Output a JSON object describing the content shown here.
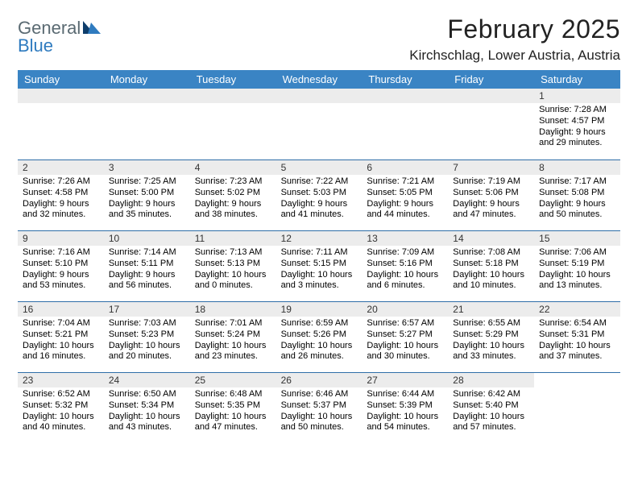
{
  "logo": {
    "word1": "General",
    "word2": "Blue"
  },
  "header": {
    "month_title": "February 2025",
    "location": "Kirchschlag, Lower Austria, Austria"
  },
  "colors": {
    "header_bar": "#3a84c4",
    "daynum_bg": "#ececec",
    "row_divider": "#2f6ea8",
    "logo_gray": "#5a6a72",
    "logo_blue": "#2f7bbf",
    "logo_tri_dark": "#0e3d6b",
    "logo_tri_light": "#2f7bbf"
  },
  "day_names": [
    "Sunday",
    "Monday",
    "Tuesday",
    "Wednesday",
    "Thursday",
    "Friday",
    "Saturday"
  ],
  "weeks": [
    [
      {
        "blank": true
      },
      {
        "blank": true
      },
      {
        "blank": true
      },
      {
        "blank": true
      },
      {
        "blank": true
      },
      {
        "blank": true
      },
      {
        "day": "1",
        "sunrise": "Sunrise: 7:28 AM",
        "sunset": "Sunset: 4:57 PM",
        "dl1": "Daylight: 9 hours",
        "dl2": "and 29 minutes."
      }
    ],
    [
      {
        "day": "2",
        "sunrise": "Sunrise: 7:26 AM",
        "sunset": "Sunset: 4:58 PM",
        "dl1": "Daylight: 9 hours",
        "dl2": "and 32 minutes."
      },
      {
        "day": "3",
        "sunrise": "Sunrise: 7:25 AM",
        "sunset": "Sunset: 5:00 PM",
        "dl1": "Daylight: 9 hours",
        "dl2": "and 35 minutes."
      },
      {
        "day": "4",
        "sunrise": "Sunrise: 7:23 AM",
        "sunset": "Sunset: 5:02 PM",
        "dl1": "Daylight: 9 hours",
        "dl2": "and 38 minutes."
      },
      {
        "day": "5",
        "sunrise": "Sunrise: 7:22 AM",
        "sunset": "Sunset: 5:03 PM",
        "dl1": "Daylight: 9 hours",
        "dl2": "and 41 minutes."
      },
      {
        "day": "6",
        "sunrise": "Sunrise: 7:21 AM",
        "sunset": "Sunset: 5:05 PM",
        "dl1": "Daylight: 9 hours",
        "dl2": "and 44 minutes."
      },
      {
        "day": "7",
        "sunrise": "Sunrise: 7:19 AM",
        "sunset": "Sunset: 5:06 PM",
        "dl1": "Daylight: 9 hours",
        "dl2": "and 47 minutes."
      },
      {
        "day": "8",
        "sunrise": "Sunrise: 7:17 AM",
        "sunset": "Sunset: 5:08 PM",
        "dl1": "Daylight: 9 hours",
        "dl2": "and 50 minutes."
      }
    ],
    [
      {
        "day": "9",
        "sunrise": "Sunrise: 7:16 AM",
        "sunset": "Sunset: 5:10 PM",
        "dl1": "Daylight: 9 hours",
        "dl2": "and 53 minutes."
      },
      {
        "day": "10",
        "sunrise": "Sunrise: 7:14 AM",
        "sunset": "Sunset: 5:11 PM",
        "dl1": "Daylight: 9 hours",
        "dl2": "and 56 minutes."
      },
      {
        "day": "11",
        "sunrise": "Sunrise: 7:13 AM",
        "sunset": "Sunset: 5:13 PM",
        "dl1": "Daylight: 10 hours",
        "dl2": "and 0 minutes."
      },
      {
        "day": "12",
        "sunrise": "Sunrise: 7:11 AM",
        "sunset": "Sunset: 5:15 PM",
        "dl1": "Daylight: 10 hours",
        "dl2": "and 3 minutes."
      },
      {
        "day": "13",
        "sunrise": "Sunrise: 7:09 AM",
        "sunset": "Sunset: 5:16 PM",
        "dl1": "Daylight: 10 hours",
        "dl2": "and 6 minutes."
      },
      {
        "day": "14",
        "sunrise": "Sunrise: 7:08 AM",
        "sunset": "Sunset: 5:18 PM",
        "dl1": "Daylight: 10 hours",
        "dl2": "and 10 minutes."
      },
      {
        "day": "15",
        "sunrise": "Sunrise: 7:06 AM",
        "sunset": "Sunset: 5:19 PM",
        "dl1": "Daylight: 10 hours",
        "dl2": "and 13 minutes."
      }
    ],
    [
      {
        "day": "16",
        "sunrise": "Sunrise: 7:04 AM",
        "sunset": "Sunset: 5:21 PM",
        "dl1": "Daylight: 10 hours",
        "dl2": "and 16 minutes."
      },
      {
        "day": "17",
        "sunrise": "Sunrise: 7:03 AM",
        "sunset": "Sunset: 5:23 PM",
        "dl1": "Daylight: 10 hours",
        "dl2": "and 20 minutes."
      },
      {
        "day": "18",
        "sunrise": "Sunrise: 7:01 AM",
        "sunset": "Sunset: 5:24 PM",
        "dl1": "Daylight: 10 hours",
        "dl2": "and 23 minutes."
      },
      {
        "day": "19",
        "sunrise": "Sunrise: 6:59 AM",
        "sunset": "Sunset: 5:26 PM",
        "dl1": "Daylight: 10 hours",
        "dl2": "and 26 minutes."
      },
      {
        "day": "20",
        "sunrise": "Sunrise: 6:57 AM",
        "sunset": "Sunset: 5:27 PM",
        "dl1": "Daylight: 10 hours",
        "dl2": "and 30 minutes."
      },
      {
        "day": "21",
        "sunrise": "Sunrise: 6:55 AM",
        "sunset": "Sunset: 5:29 PM",
        "dl1": "Daylight: 10 hours",
        "dl2": "and 33 minutes."
      },
      {
        "day": "22",
        "sunrise": "Sunrise: 6:54 AM",
        "sunset": "Sunset: 5:31 PM",
        "dl1": "Daylight: 10 hours",
        "dl2": "and 37 minutes."
      }
    ],
    [
      {
        "day": "23",
        "sunrise": "Sunrise: 6:52 AM",
        "sunset": "Sunset: 5:32 PM",
        "dl1": "Daylight: 10 hours",
        "dl2": "and 40 minutes."
      },
      {
        "day": "24",
        "sunrise": "Sunrise: 6:50 AM",
        "sunset": "Sunset: 5:34 PM",
        "dl1": "Daylight: 10 hours",
        "dl2": "and 43 minutes."
      },
      {
        "day": "25",
        "sunrise": "Sunrise: 6:48 AM",
        "sunset": "Sunset: 5:35 PM",
        "dl1": "Daylight: 10 hours",
        "dl2": "and 47 minutes."
      },
      {
        "day": "26",
        "sunrise": "Sunrise: 6:46 AM",
        "sunset": "Sunset: 5:37 PM",
        "dl1": "Daylight: 10 hours",
        "dl2": "and 50 minutes."
      },
      {
        "day": "27",
        "sunrise": "Sunrise: 6:44 AM",
        "sunset": "Sunset: 5:39 PM",
        "dl1": "Daylight: 10 hours",
        "dl2": "and 54 minutes."
      },
      {
        "day": "28",
        "sunrise": "Sunrise: 6:42 AM",
        "sunset": "Sunset: 5:40 PM",
        "dl1": "Daylight: 10 hours",
        "dl2": "and 57 minutes."
      },
      {
        "blank": true,
        "noBar": true
      }
    ]
  ]
}
